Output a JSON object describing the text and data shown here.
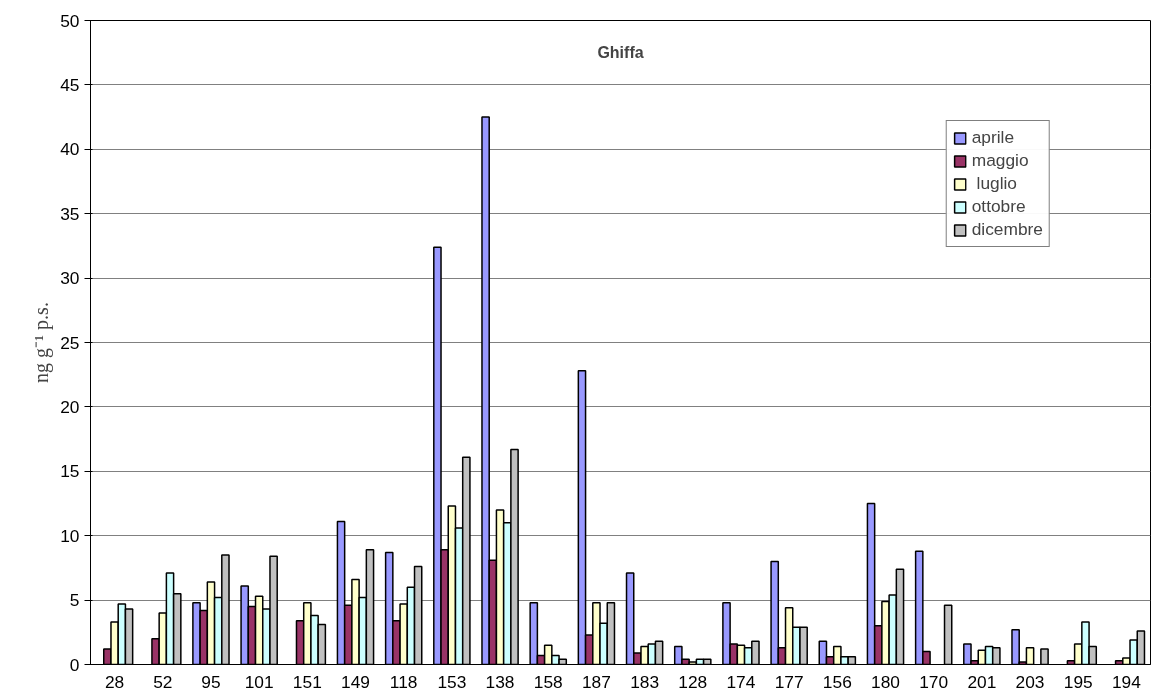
{
  "chart_data": {
    "type": "bar",
    "title": "Ghiffa",
    "ylabel": "ng g⁻¹ p.s.",
    "categories": [
      "28",
      "52",
      "95",
      "101",
      "151",
      "149",
      "118",
      "153",
      "138",
      "158",
      "187",
      "183",
      "128",
      "174",
      "177",
      "156",
      "180",
      "170",
      "201",
      "203",
      "195",
      "194"
    ],
    "series": [
      {
        "name": "aprile",
        "color": "#9999ff",
        "values": [
          null,
          null,
          4.8,
          6.1,
          null,
          11.1,
          8.7,
          32.4,
          42.5,
          4.8,
          22.8,
          7.1,
          1.4,
          4.8,
          8.0,
          1.8,
          12.5,
          8.8,
          1.6,
          2.7,
          null,
          null
        ]
      },
      {
        "name": "maggio",
        "color": "#993366",
        "values": [
          1.2,
          2.0,
          4.2,
          4.5,
          3.4,
          4.6,
          3.4,
          8.9,
          8.1,
          0.7,
          2.3,
          0.9,
          0.4,
          1.6,
          1.3,
          0.6,
          3.0,
          1.0,
          0.3,
          0.2,
          0.3,
          0.3
        ]
      },
      {
        "name": " luglio",
        "color": "#ffffcc",
        "values": [
          3.3,
          4.0,
          6.4,
          5.3,
          4.8,
          6.6,
          4.7,
          12.3,
          12.0,
          1.5,
          4.8,
          1.4,
          0.2,
          1.5,
          4.4,
          1.4,
          4.9,
          null,
          1.1,
          1.3,
          1.6,
          0.5
        ]
      },
      {
        "name": "ottobre",
        "color": "#ccffff",
        "values": [
          4.7,
          7.1,
          5.2,
          4.3,
          3.8,
          5.2,
          6.0,
          10.6,
          11.0,
          0.7,
          3.2,
          1.6,
          0.4,
          1.3,
          2.9,
          0.6,
          5.4,
          null,
          1.4,
          null,
          3.3,
          1.9
        ]
      },
      {
        "name": "dicembre",
        "color": "#c0c0c0",
        "values": [
          4.3,
          5.5,
          8.5,
          8.4,
          3.1,
          8.9,
          7.6,
          16.1,
          16.7,
          0.4,
          4.8,
          1.8,
          0.4,
          1.8,
          2.9,
          0.6,
          7.4,
          4.6,
          1.3,
          1.2,
          1.4,
          2.6
        ]
      }
    ],
    "ylim": [
      0,
      50
    ],
    "yticks": [
      0,
      5,
      10,
      15,
      20,
      25,
      30,
      35,
      40,
      45,
      50
    ],
    "grid": "y",
    "legend": "top right"
  }
}
